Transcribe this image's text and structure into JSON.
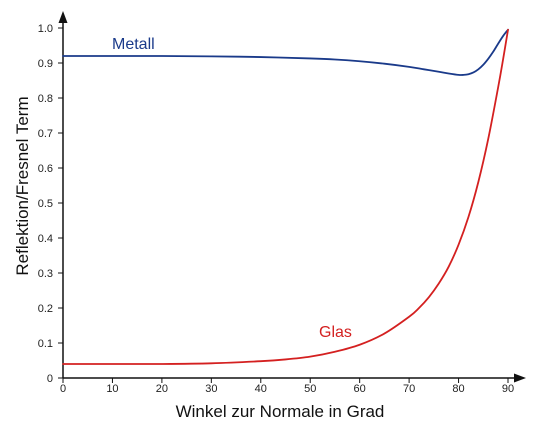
{
  "chart_data": {
    "type": "line",
    "title": "",
    "xlabel": "Winkel zur Normale in Grad",
    "ylabel": "Reflektion/Fresnel Term",
    "xlim": [
      0,
      90
    ],
    "ylim": [
      0,
      1.0
    ],
    "x_ticks": [
      "0",
      "10",
      "20",
      "30",
      "40",
      "50",
      "60",
      "70",
      "80",
      "90"
    ],
    "y_ticks": [
      "0",
      "0.1",
      "0.2",
      "0.3",
      "0.4",
      "0.5",
      "0.6",
      "0.7",
      "0.8",
      "0.9",
      "1.0"
    ],
    "grid": false,
    "series": [
      {
        "name": "Metall",
        "color": "#1a3a8a",
        "x": [
          0,
          10,
          20,
          30,
          40,
          50,
          55,
          60,
          65,
          70,
          73,
          76,
          78,
          80,
          81,
          82,
          83,
          84,
          85,
          86,
          87,
          88,
          89,
          90
        ],
        "y": [
          0.92,
          0.92,
          0.92,
          0.919,
          0.917,
          0.913,
          0.91,
          0.905,
          0.898,
          0.889,
          0.882,
          0.875,
          0.87,
          0.866,
          0.866,
          0.868,
          0.873,
          0.882,
          0.895,
          0.912,
          0.932,
          0.955,
          0.977,
          0.995
        ]
      },
      {
        "name": "Glas",
        "color": "#d42020",
        "x": [
          0,
          10,
          20,
          30,
          40,
          45,
          50,
          55,
          60,
          65,
          70,
          72,
          74,
          76,
          78,
          80,
          82,
          84,
          86,
          88,
          89,
          90
        ],
        "y": [
          0.04,
          0.04,
          0.04,
          0.042,
          0.048,
          0.053,
          0.061,
          0.075,
          0.095,
          0.127,
          0.175,
          0.2,
          0.231,
          0.27,
          0.318,
          0.381,
          0.46,
          0.56,
          0.683,
          0.83,
          0.91,
          0.995
        ]
      }
    ]
  }
}
